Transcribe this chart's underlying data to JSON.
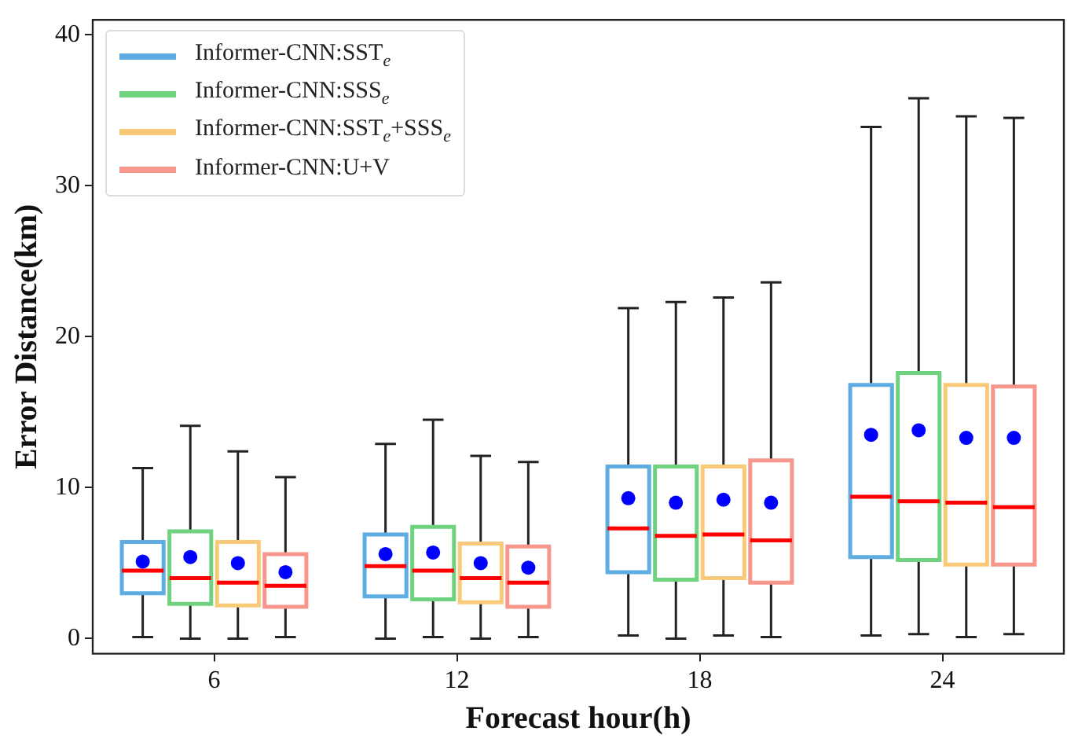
{
  "chart_data": {
    "type": "box",
    "xlabel": "Forecast hour(h)",
    "ylabel": "Error Distance(km)",
    "categories": [
      "6",
      "12",
      "18",
      "24"
    ],
    "ylim": [
      -1,
      41
    ],
    "yticks": [
      0,
      10,
      20,
      30,
      40
    ],
    "grid": false,
    "legend": "top left",
    "marker": "circle",
    "series": [
      {
        "name": "Informer-CNN:SST$_{e}$",
        "color": "#5dade2",
        "boxes": [
          {
            "low": 0.1,
            "q1": 3.0,
            "median": 4.5,
            "q3": 6.4,
            "high": 11.3,
            "mean": 5.1
          },
          {
            "low": 0,
            "q1": 2.8,
            "median": 4.8,
            "q3": 6.9,
            "high": 12.9,
            "mean": 5.6
          },
          {
            "low": 0.2,
            "q1": 4.4,
            "median": 7.3,
            "q3": 11.4,
            "high": 21.9,
            "mean": 9.3
          },
          {
            "low": 0.2,
            "q1": 5.4,
            "median": 9.4,
            "q3": 16.8,
            "high": 33.9,
            "mean": 13.5
          }
        ]
      },
      {
        "name": "Informer-CNN:SSS$_{e}$",
        "color": "#6fd27f",
        "boxes": [
          {
            "low": 0,
            "q1": 2.3,
            "median": 4.0,
            "q3": 7.1,
            "high": 14.1,
            "mean": 5.4
          },
          {
            "low": 0.1,
            "q1": 2.6,
            "median": 4.5,
            "q3": 7.4,
            "high": 14.5,
            "mean": 5.7
          },
          {
            "low": 0,
            "q1": 3.9,
            "median": 6.8,
            "q3": 11.4,
            "high": 22.3,
            "mean": 9.0
          },
          {
            "low": 0.3,
            "q1": 5.2,
            "median": 9.1,
            "q3": 17.6,
            "high": 35.8,
            "mean": 13.8
          }
        ]
      },
      {
        "name": "Informer-CNN:SST$_{e}$+SSS$_{e}$",
        "color": "#f9c97a",
        "boxes": [
          {
            "low": 0,
            "q1": 2.2,
            "median": 3.7,
            "q3": 6.4,
            "high": 12.4,
            "mean": 5.0
          },
          {
            "low": 0,
            "q1": 2.4,
            "median": 4.0,
            "q3": 6.3,
            "high": 12.1,
            "mean": 5.0
          },
          {
            "low": 0.2,
            "q1": 4.0,
            "median": 6.9,
            "q3": 11.4,
            "high": 22.6,
            "mean": 9.2
          },
          {
            "low": 0.1,
            "q1": 4.9,
            "median": 9.0,
            "q3": 16.8,
            "high": 34.6,
            "mean": 13.3
          }
        ]
      },
      {
        "name": "Informer-CNN:U+V",
        "color": "#f7968a",
        "boxes": [
          {
            "low": 0.1,
            "q1": 2.1,
            "median": 3.5,
            "q3": 5.6,
            "high": 10.7,
            "mean": 4.4
          },
          {
            "low": 0.1,
            "q1": 2.1,
            "median": 3.7,
            "q3": 6.1,
            "high": 11.7,
            "mean": 4.7
          },
          {
            "low": 0.1,
            "q1": 3.7,
            "median": 6.5,
            "q3": 11.8,
            "high": 23.6,
            "mean": 9.0
          },
          {
            "low": 0.3,
            "q1": 4.9,
            "median": 8.7,
            "q3": 16.7,
            "high": 34.5,
            "mean": 13.3
          }
        ]
      }
    ]
  }
}
